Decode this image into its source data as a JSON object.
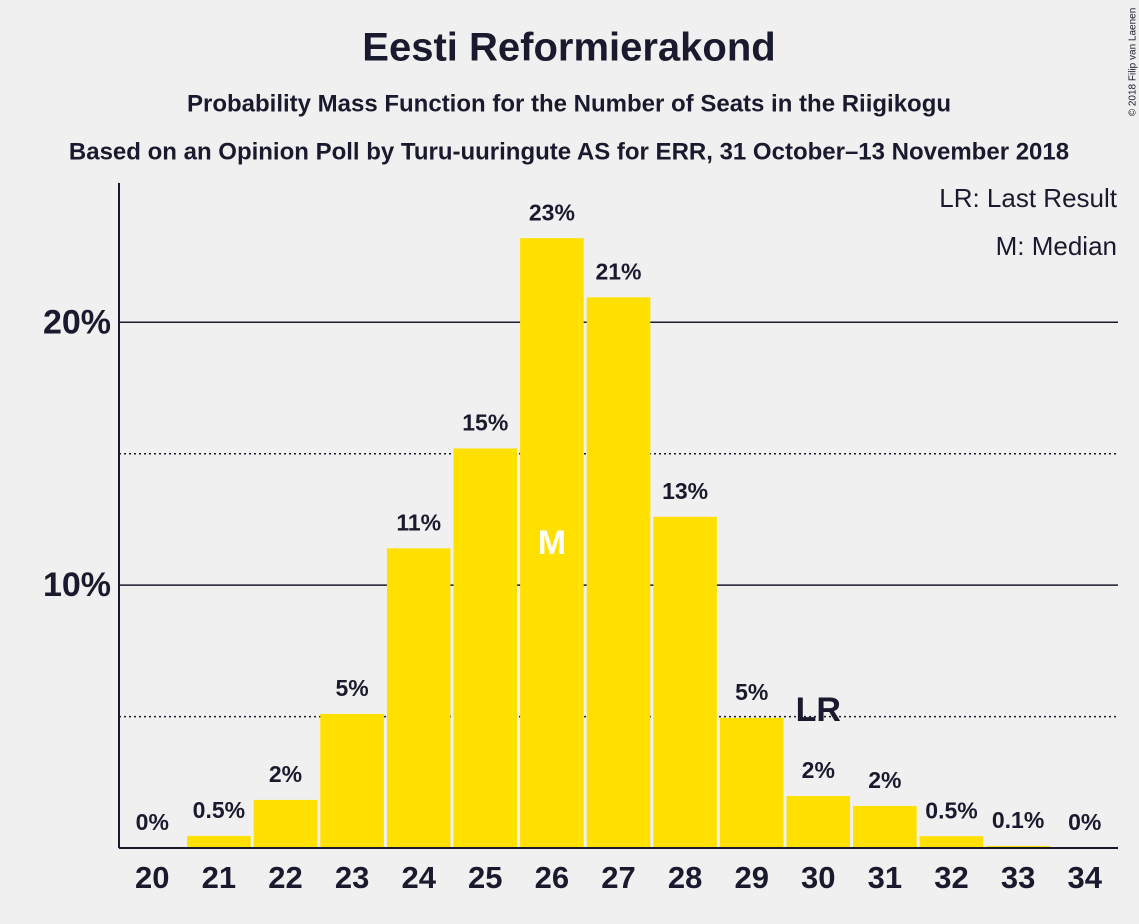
{
  "chart_data": {
    "type": "bar",
    "title": "Eesti Reformierakond",
    "subtitle": "Probability Mass Function for the Number of Seats in the Riigikogu",
    "source_note": "Based on an Opinion Poll by Turu-uuringute AS for ERR, 31 October–13 November 2018",
    "copyright": "© 2018 Filip van Laenen",
    "legend_notes": [
      "LR: Last Result",
      "M: Median"
    ],
    "categories": [
      "20",
      "21",
      "22",
      "23",
      "24",
      "25",
      "26",
      "27",
      "28",
      "29",
      "30",
      "31",
      "32",
      "33",
      "34"
    ],
    "values": [
      0,
      0.46,
      1.83,
      5.1,
      11.4,
      15.2,
      23.2,
      20.95,
      12.6,
      4.95,
      1.98,
      1.6,
      0.45,
      0.08,
      0
    ],
    "value_labels": [
      "0%",
      "0.5%",
      "2%",
      "5%",
      "11%",
      "15%",
      "23%",
      "21%",
      "13%",
      "5%",
      "2%",
      "2%",
      "0.5%",
      "0.1%",
      "0%"
    ],
    "color": "#ffe000",
    "annotations": [
      {
        "text": "M",
        "category": "26",
        "position": "inside"
      },
      {
        "text": "LR",
        "category": "30",
        "position": "above"
      }
    ],
    "ylim": [
      0,
      25.3
    ],
    "yticks": [
      {
        "value": 10,
        "label": "10%"
      },
      {
        "value": 20,
        "label": "20%"
      }
    ],
    "minor_yticks": [
      5,
      15
    ],
    "grid": true
  }
}
